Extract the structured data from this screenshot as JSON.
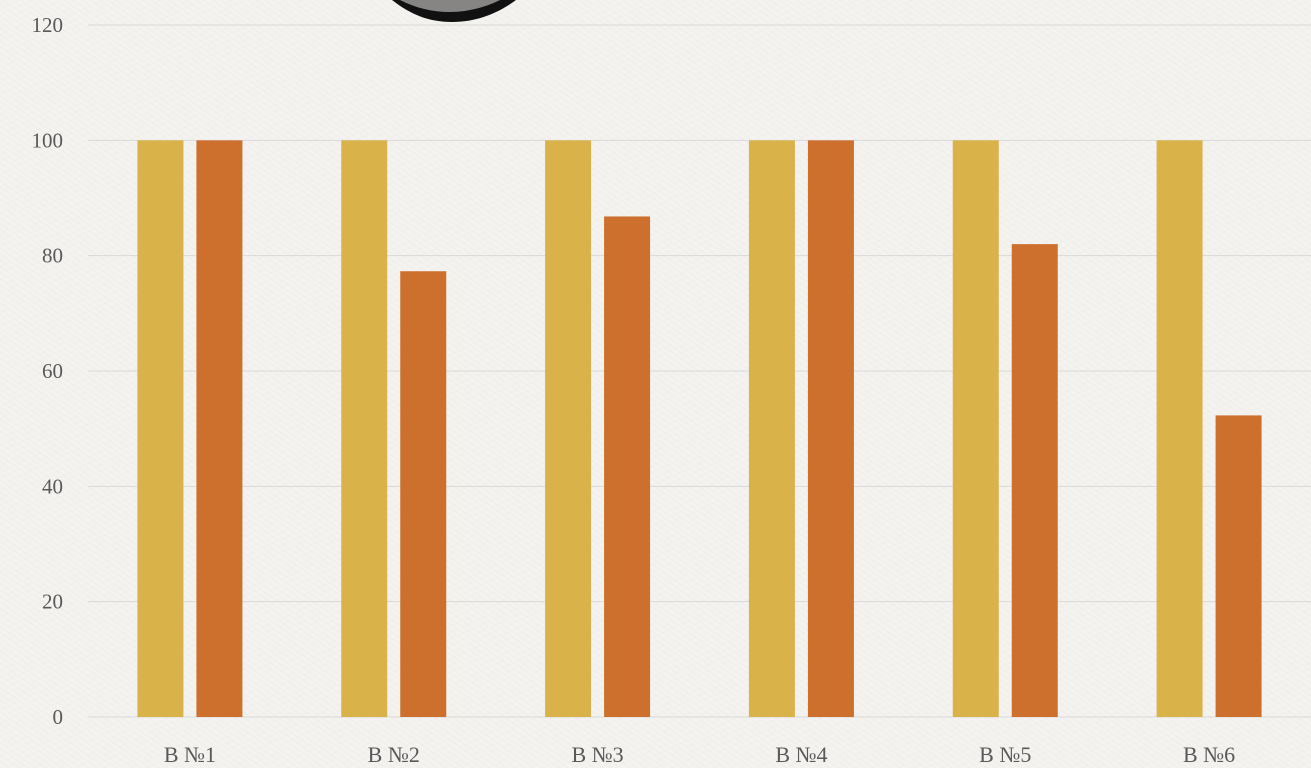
{
  "chart_data": {
    "type": "bar",
    "categories": [
      "В №1",
      "В №2",
      "В №3",
      "В №4",
      "В №5",
      "В №6"
    ],
    "series": [
      {
        "values": [
          100,
          100,
          100,
          100,
          100,
          100
        ],
        "color": "#d9b349"
      },
      {
        "values": [
          100,
          77.3,
          86.8,
          100,
          82,
          52.3
        ],
        "color": "#cd702d"
      }
    ],
    "ylim": [
      0,
      120
    ],
    "yticks": [
      0,
      20,
      40,
      60,
      80,
      100,
      120
    ],
    "grid": true,
    "legend": "none",
    "title": "",
    "xlabel": "",
    "ylabel": ""
  },
  "decoration": {
    "shape_icon": "dark-rounded-shape-icon"
  }
}
